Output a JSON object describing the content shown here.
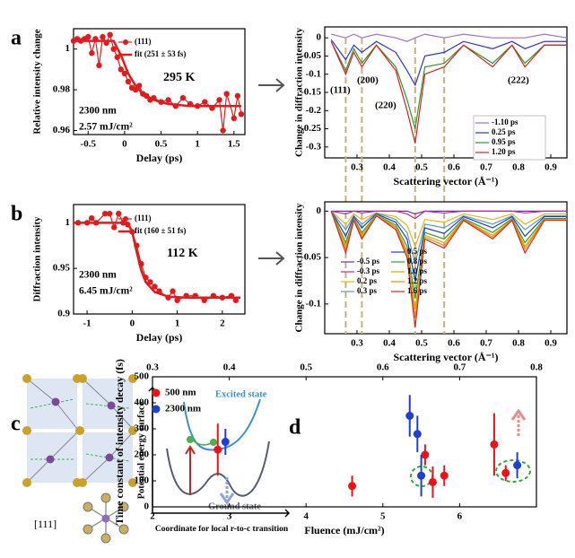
{
  "panel_labels": [
    "a",
    "b",
    "c",
    "d"
  ],
  "chart_data": [
    {
      "type": "line",
      "xlabel": "Delay (ps)",
      "ylabel": "Relative intensity change",
      "xlim": [
        -0.7,
        1.65
      ],
      "ylim": [
        0.958,
        1.01
      ],
      "xticks": [
        -0.5,
        0,
        0.5,
        1,
        1.5
      ],
      "yticks": [
        0.96,
        0.98,
        1
      ],
      "annotations": [
        "295 K",
        "2300 nm",
        "2.57 mJ/cm²"
      ],
      "series": [
        {
          "name": "(111)",
          "color": "#e31a1c",
          "markers": true,
          "x": [
            -0.7,
            -0.65,
            -0.6,
            -0.55,
            -0.5,
            -0.45,
            -0.4,
            -0.35,
            -0.3,
            -0.25,
            -0.2,
            -0.15,
            -0.1,
            -0.05,
            0,
            0.05,
            0.1,
            0.15,
            0.2,
            0.25,
            0.3,
            0.35,
            0.4,
            0.5,
            0.6,
            0.7,
            0.8,
            0.9,
            1.0,
            1.1,
            1.2,
            1.3,
            1.35,
            1.4,
            1.5,
            1.55,
            1.6
          ],
          "values": [
            1.004,
            1.005,
            1.004,
            1.005,
            1.006,
            0.998,
            1.005,
            0.992,
            1.006,
            1.003,
            1.007,
            1.0,
            0.996,
            0.99,
            0.988,
            0.984,
            0.981,
            0.98,
            0.982,
            0.978,
            0.977,
            0.975,
            0.976,
            0.974,
            0.975,
            0.972,
            0.976,
            0.973,
            0.972,
            0.974,
            0.971,
            0.975,
            0.96,
            0.978,
            0.966,
            0.977,
            0.968
          ]
        },
        {
          "name": "fit (251 ± 53 fs)",
          "color": "#e31a1c",
          "markers": false,
          "width": 2.5,
          "x": [
            -0.7,
            -0.15,
            -0.05,
            0.05,
            0.15,
            0.25,
            0.4,
            0.6,
            0.9,
            1.2,
            1.6
          ],
          "values": [
            1.004,
            1.004,
            0.997,
            0.988,
            0.982,
            0.978,
            0.975,
            0.973,
            0.972,
            0.972,
            0.972
          ]
        }
      ]
    },
    {
      "type": "line",
      "xlabel": "Scattering vector (Å⁻¹)",
      "ylabel": "Change in diffraction intensity",
      "xlim": [
        0.2,
        0.95
      ],
      "ylim": [
        -0.33,
        0.03
      ],
      "xticks": [
        0.3,
        0.4,
        0.5,
        0.6,
        0.7,
        0.8,
        0.9
      ],
      "yticks": [
        -0.3,
        -0.25,
        -0.2,
        -0.15,
        -0.1,
        -0.05,
        0
      ],
      "vlines": [
        0.265,
        0.315,
        0.48,
        0.57
      ],
      "annotations": [
        "(111)",
        "(200)",
        "(220)",
        "(222)"
      ],
      "x": [
        0.22,
        0.265,
        0.29,
        0.315,
        0.36,
        0.42,
        0.455,
        0.48,
        0.51,
        0.57,
        0.63,
        0.72,
        0.78,
        0.82,
        0.88,
        0.95
      ],
      "series": [
        {
          "name": "-1.10 ps",
          "color": "#a070d0",
          "values": [
            0.01,
            0,
            0.01,
            0,
            0.01,
            0,
            -0.01,
            0,
            0.01,
            0,
            0.01,
            0,
            0,
            0,
            0.01,
            0
          ]
        },
        {
          "name": "0.25 ps",
          "color": "#3030e0",
          "values": [
            -0.005,
            -0.06,
            -0.02,
            -0.04,
            -0.01,
            -0.04,
            -0.09,
            -0.13,
            -0.05,
            -0.04,
            -0.01,
            -0.03,
            -0.01,
            -0.03,
            -0.01,
            -0.01
          ]
        },
        {
          "name": "0.95 ps",
          "color": "#2a9a2a",
          "values": [
            -0.01,
            -0.09,
            -0.03,
            -0.07,
            -0.02,
            -0.08,
            -0.17,
            -0.25,
            -0.08,
            -0.07,
            -0.02,
            -0.07,
            -0.02,
            -0.07,
            -0.02,
            -0.02
          ]
        },
        {
          "name": "1.20 ps",
          "color": "#e02020",
          "values": [
            -0.01,
            -0.1,
            -0.04,
            -0.08,
            -0.02,
            -0.09,
            -0.2,
            -0.29,
            -0.1,
            -0.08,
            -0.02,
            -0.08,
            -0.02,
            -0.08,
            -0.02,
            -0.02
          ]
        }
      ]
    },
    {
      "type": "line",
      "xlabel": "Delay (ps)",
      "ylabel": "Diffraction intensity",
      "xlim": [
        -1.3,
        2.5
      ],
      "ylim": [
        0.9,
        1.02
      ],
      "xticks": [
        -1,
        0,
        1,
        2
      ],
      "yticks": [
        0.9,
        0.95,
        1
      ],
      "annotations": [
        "112 K",
        "2300 nm",
        "6.45 mJ/cm²"
      ],
      "series": [
        {
          "name": "(111)",
          "color": "#e31a1c",
          "markers": true,
          "x": [
            -1.2,
            -1.0,
            -0.9,
            -0.8,
            -0.6,
            -0.5,
            -0.4,
            -0.3,
            -0.2,
            -0.1,
            0,
            0.1,
            0.2,
            0.3,
            0.4,
            0.5,
            0.6,
            0.8,
            0.9,
            1.0,
            1.2,
            1.4,
            1.6,
            1.8,
            2.0,
            2.2,
            2.3
          ],
          "values": [
            1.0,
            1.0,
            1.005,
            1.0,
            1.01,
            1.01,
            0.995,
            1.01,
            1.0,
            0.998,
            0.99,
            0.975,
            0.955,
            0.94,
            0.935,
            0.93,
            0.925,
            0.918,
            0.925,
            0.915,
            0.92,
            0.92,
            0.915,
            0.92,
            0.918,
            0.92,
            0.915
          ]
        },
        {
          "name": "fit (160 ± 51 fs)",
          "color": "#e31a1c",
          "markers": false,
          "width": 2.5,
          "x": [
            -1.3,
            -0.1,
            0,
            0.1,
            0.2,
            0.3,
            0.5,
            0.8,
            1.2,
            2.4
          ],
          "values": [
            1.0,
            1.0,
            0.99,
            0.968,
            0.948,
            0.935,
            0.924,
            0.919,
            0.918,
            0.918
          ]
        }
      ]
    },
    {
      "type": "line",
      "xlabel": "Scattering vector (Å⁻¹)",
      "ylabel": "Change in diffraction intensity",
      "xlim": [
        0.2,
        0.95
      ],
      "ylim": [
        -0.132,
        0.01
      ],
      "xticks": [
        0.3,
        0.4,
        0.5,
        0.6,
        0.7,
        0.8,
        0.9
      ],
      "yticks": [
        -0.1,
        -0.05,
        0
      ],
      "vlines": [
        0.265,
        0.315,
        0.48,
        0.57
      ],
      "x": [
        0.22,
        0.265,
        0.29,
        0.315,
        0.36,
        0.42,
        0.455,
        0.48,
        0.51,
        0.57,
        0.63,
        0.72,
        0.78,
        0.82,
        0.88,
        0.95
      ],
      "series": [
        {
          "name": "-0.5 ps",
          "color": "#7030a0",
          "values": [
            0,
            0,
            0,
            0,
            0,
            0,
            0,
            -0.003,
            0,
            0,
            0,
            0,
            0,
            0,
            0,
            0
          ]
        },
        {
          "name": "-0.3 ps",
          "color": "#b0309a",
          "values": [
            0,
            -0.003,
            0,
            -0.002,
            0,
            0,
            -0.003,
            -0.008,
            0,
            -0.002,
            0,
            0,
            0,
            -0.002,
            0,
            0
          ]
        },
        {
          "name": "0.2 ps",
          "color": "#f0b400",
          "values": [
            0,
            -0.014,
            -0.003,
            -0.009,
            -0.002,
            -0.006,
            -0.015,
            -0.038,
            -0.009,
            -0.012,
            -0.003,
            -0.009,
            -0.003,
            -0.014,
            -0.003,
            -0.003
          ]
        },
        {
          "name": "0.3 ps",
          "color": "#5b9bd5",
          "values": [
            0,
            -0.02,
            -0.005,
            -0.014,
            -0.002,
            -0.009,
            -0.023,
            -0.056,
            -0.014,
            -0.018,
            -0.005,
            -0.014,
            -0.005,
            -0.02,
            -0.005,
            -0.005
          ]
        },
        {
          "name": "0.5 ps",
          "color": "#1f3fbf",
          "values": [
            0,
            -0.027,
            -0.006,
            -0.018,
            -0.003,
            -0.012,
            -0.03,
            -0.075,
            -0.018,
            -0.024,
            -0.006,
            -0.018,
            -0.006,
            -0.027,
            -0.006,
            -0.006
          ]
        },
        {
          "name": "0.8 ps",
          "color": "#2e9e3a",
          "values": [
            0,
            -0.034,
            -0.008,
            -0.023,
            -0.004,
            -0.015,
            -0.038,
            -0.094,
            -0.023,
            -0.03,
            -0.008,
            -0.023,
            -0.008,
            -0.034,
            -0.008,
            -0.008
          ]
        },
        {
          "name": "1.0 ps",
          "color": "#c8b400",
          "values": [
            0,
            -0.038,
            -0.009,
            -0.026,
            -0.004,
            -0.017,
            -0.043,
            -0.106,
            -0.026,
            -0.034,
            -0.009,
            -0.026,
            -0.009,
            -0.038,
            -0.009,
            -0.009
          ]
        },
        {
          "name": "1.2 ps",
          "color": "#f08a00",
          "values": [
            0,
            -0.041,
            -0.009,
            -0.028,
            -0.005,
            -0.018,
            -0.046,
            -0.115,
            -0.028,
            -0.037,
            -0.009,
            -0.028,
            -0.009,
            -0.041,
            -0.009,
            -0.009
          ]
        },
        {
          "name": "1.6 ps",
          "color": "#e02020",
          "values": [
            0,
            -0.045,
            -0.01,
            -0.03,
            -0.005,
            -0.02,
            -0.05,
            -0.125,
            -0.03,
            -0.04,
            -0.01,
            -0.03,
            -0.01,
            -0.045,
            -0.01,
            -0.01
          ]
        }
      ]
    },
    {
      "type": "scatter",
      "xlabel": "Fluence (mJ/cm²)",
      "ylabel": "Time constant of intensity decay (fs)",
      "xlim": [
        2,
        7
      ],
      "ylim": [
        0,
        500
      ],
      "xticks": [
        2,
        3,
        4,
        5,
        6
      ],
      "yticks": [
        0,
        100,
        200,
        300,
        400,
        500
      ],
      "x2lim": [
        0.3,
        0.8
      ],
      "x2ticks": [
        0.3,
        0.4,
        0.5,
        0.6,
        0.7,
        0.8
      ],
      "series": [
        {
          "name": "500 nm",
          "color": "#e8141a",
          "x": [
            2.85,
            4.6,
            5.55,
            5.65,
            5.8,
            6.45,
            6.6
          ],
          "values": [
            220,
            80,
            200,
            95,
            120,
            240,
            130
          ],
          "errors": [
            100,
            40,
            40,
            60,
            40,
            120,
            30
          ]
        },
        {
          "name": "2300 nm",
          "color": "#1f3fd0",
          "x": [
            2.95,
            5.5,
            5.35,
            5.45,
            6.75
          ],
          "values": [
            250,
            120,
            350,
            280,
            160
          ],
          "errors": [
            50,
            80,
            80,
            70,
            50
          ]
        }
      ]
    }
  ],
  "diagram_c": {
    "direction": "[111]",
    "y_axis": "Potential energy surface",
    "excited": "Excited state",
    "ground": "Ground state",
    "x_axis": "Coordinate for local r-to-c transition"
  }
}
